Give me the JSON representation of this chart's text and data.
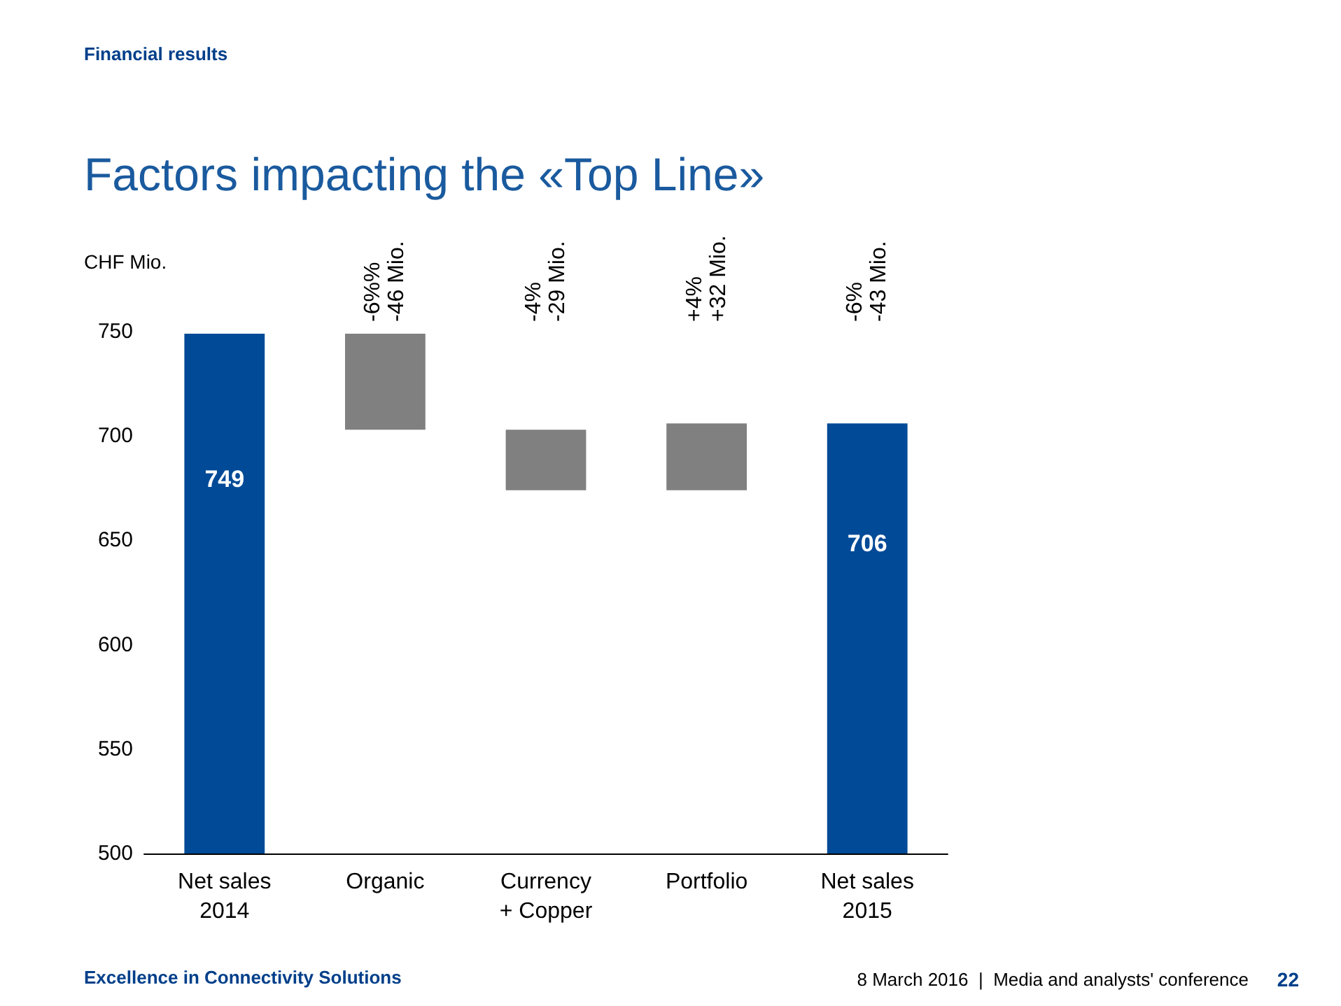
{
  "chart_data": {
    "type": "bar",
    "title": "Factors impacting the «Top Line»",
    "subtitle": "Financial results",
    "ylabel": "CHF Mio.",
    "categories": [
      "Net sales\n2014",
      "Organic",
      "Currency\n+ Copper",
      "Portfolio",
      "Net sales\n2015"
    ],
    "values": [
      749,
      -46,
      -29,
      32,
      706
    ],
    "base": [
      null,
      749,
      703,
      674,
      null
    ],
    "colors": [
      "#004a97",
      "#808080",
      "#808080",
      "#808080",
      "#004a97"
    ],
    "value_labels": [
      "749",
      null,
      null,
      null,
      "706"
    ],
    "ylim": [
      500,
      750
    ],
    "yticks": [
      500,
      550,
      600,
      650,
      700,
      750
    ],
    "grid": false,
    "annotations": [
      "-6%%\n-46 Mio.",
      "-4%\n-29 Mio.",
      "+4%\n+32 Mio.",
      "-6%\n-43 Mio.",
      "Excellence in Connectivity Solutions",
      "8 March 2016  |  Media and analysts' conference",
      "22"
    ]
  }
}
